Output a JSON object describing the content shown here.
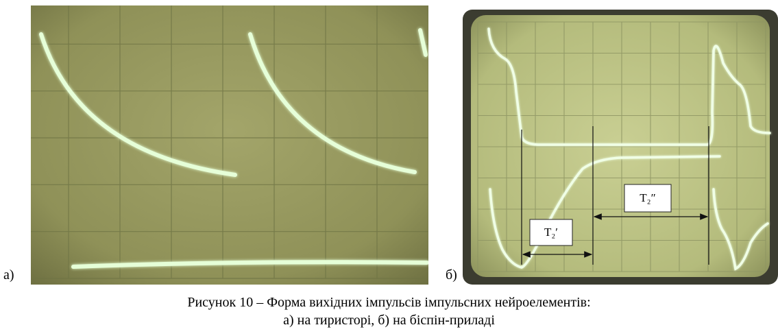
{
  "figure": {
    "label_a": "а)",
    "label_b": "б)",
    "annotation_t2_prime": "T₂′",
    "annotation_t2_double_prime": "T₂″"
  },
  "caption": {
    "line1": "Рисунок 10 – Форма вихідних імпульсів імпульсних нейроелементів:",
    "line2": "а) на тиристорі, б) на біспін-приладі"
  }
}
